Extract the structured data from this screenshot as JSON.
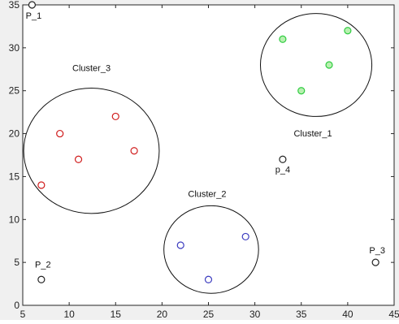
{
  "chart_data": {
    "type": "scatter",
    "title": "",
    "xlabel": "",
    "ylabel": "",
    "xlim": [
      5,
      45
    ],
    "ylim": [
      0,
      35
    ],
    "xticks": [
      5,
      10,
      15,
      20,
      25,
      30,
      35,
      40,
      45
    ],
    "yticks": [
      0,
      5,
      10,
      15,
      20,
      25,
      30,
      35
    ],
    "grid": false,
    "legend": "none",
    "series": [
      {
        "color": "#2ecc40",
        "fill": "#b8f0b0",
        "points": [
          {
            "x": 33,
            "y": 31
          },
          {
            "x": 40,
            "y": 32
          },
          {
            "x": 38,
            "y": 28
          },
          {
            "x": 35,
            "y": 25
          }
        ]
      },
      {
        "color": "#3b3bbf",
        "fill": "#ffffff",
        "points": [
          {
            "x": 22,
            "y": 7
          },
          {
            "x": 29,
            "y": 8
          },
          {
            "x": 25,
            "y": 3
          }
        ]
      },
      {
        "color": "#d01c1c",
        "fill": "#ffffff",
        "points": [
          {
            "x": 9,
            "y": 20
          },
          {
            "x": 15,
            "y": 22
          },
          {
            "x": 11,
            "y": 17
          },
          {
            "x": 17,
            "y": 18
          },
          {
            "x": 7,
            "y": 14
          }
        ]
      },
      {
        "color": "#222222",
        "fill": "#ffffff",
        "points": [
          {
            "x": 6,
            "y": 35
          },
          {
            "x": 7,
            "y": 3
          },
          {
            "x": 43,
            "y": 5
          },
          {
            "x": 33,
            "y": 17
          }
        ]
      }
    ],
    "clusters": [
      {
        "label": "Cluster_1",
        "center": [
          36.6,
          28.0
        ],
        "radius": 6.0
      },
      {
        "label": "Cluster_2",
        "center": [
          25.3,
          6.5
        ],
        "radius": 5.1
      },
      {
        "label": "Cluster_3",
        "center": [
          12.4,
          18.0
        ],
        "radius": 7.3
      }
    ],
    "annotations": [
      {
        "text": "P_1",
        "x": 6,
        "y": 35
      },
      {
        "text": "P_2",
        "x": 7,
        "y": 3
      },
      {
        "text": "P_3",
        "x": 43,
        "y": 5
      },
      {
        "text": "p_4",
        "x": 33,
        "y": 17
      },
      {
        "text": "Cluster_1",
        "x": 36.6,
        "y": 28.0
      },
      {
        "text": "Cluster_2",
        "x": 25.3,
        "y": 6.5
      },
      {
        "text": "Cluster_3",
        "x": 12.4,
        "y": 18.0
      }
    ]
  }
}
